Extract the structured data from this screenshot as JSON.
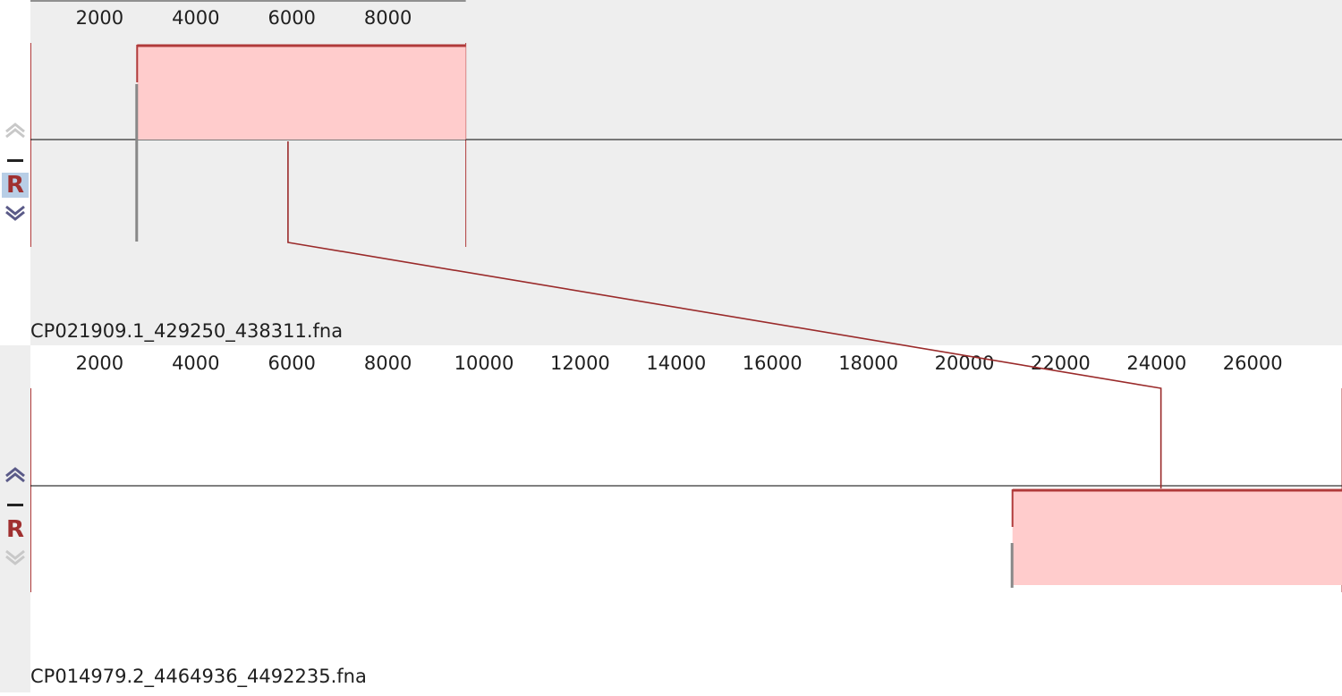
{
  "window": {
    "background": "#ffffff",
    "colors": {
      "top_panel_bg": "#eeeeee",
      "bottom_panel_bg": "#ffffff",
      "left_strip_top": "#ffffff",
      "left_strip_bottom": "#eeeeee",
      "block_fill": "#ffcccc",
      "block_edge": "#b03a3a",
      "connector": "#9a2a2a",
      "gap_line": "#888888",
      "axis_text": "#202020",
      "arrow_active": "#5a5a88",
      "arrow_disabled": "#c8c8c8"
    }
  },
  "genomes": [
    {
      "name": "CP021909.1_429250_438311.fna",
      "length": 9062,
      "ticks": [
        2000,
        4000,
        6000,
        8000
      ],
      "tick_labels": [
        "2000",
        "4000",
        "6000",
        "8000"
      ],
      "controls": {
        "up_icon": "chevron-up-icon",
        "minus_icon": "minus-icon",
        "reset_label": "R",
        "down_icon": "chevron-down-icon",
        "up_enabled": false,
        "down_enabled": true,
        "reset_highlighted": true
      }
    },
    {
      "name": "CP014979.2_4464936_4492235.fna",
      "length": 27300,
      "ticks": [
        2000,
        4000,
        6000,
        8000,
        10000,
        12000,
        14000,
        16000,
        18000,
        20000,
        22000,
        24000,
        26000
      ],
      "tick_labels": [
        "2000",
        "4000",
        "6000",
        "8000",
        "10000",
        "12000",
        "14000",
        "16000",
        "18000",
        "20000",
        "22000",
        "24000",
        "26000"
      ],
      "controls": {
        "up_icon": "chevron-up-icon",
        "minus_icon": "minus-icon",
        "reset_label": "R",
        "down_icon": "chevron-down-icon",
        "up_enabled": true,
        "down_enabled": false,
        "reset_highlighted": false
      }
    }
  ],
  "lcb_blocks": [
    {
      "genome": 0,
      "start": 2780,
      "end": 9062,
      "strand": "forward"
    },
    {
      "genome": 1,
      "start": 21000,
      "end": 27300,
      "strand": "reverse"
    }
  ],
  "connection": {
    "from_genome": 0,
    "from_position": 5920,
    "to_genome": 1,
    "to_position": 24090
  }
}
